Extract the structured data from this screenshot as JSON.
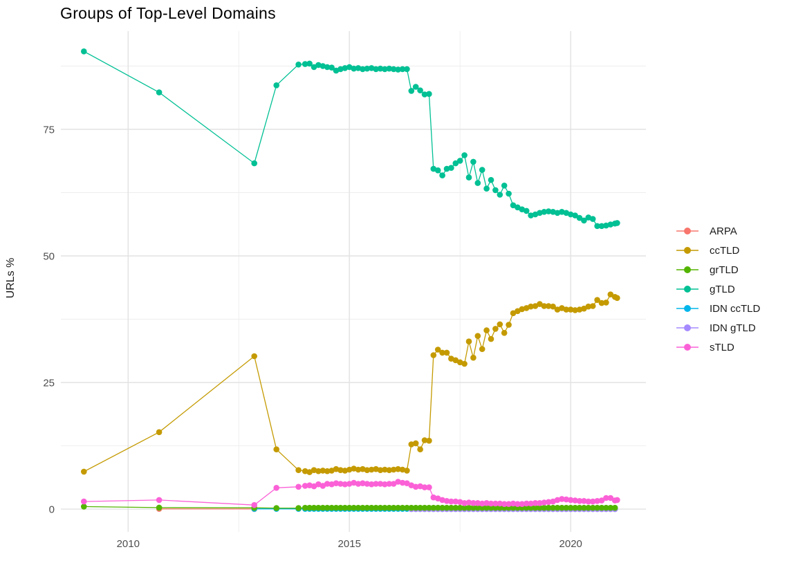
{
  "chart_data": {
    "type": "line",
    "title": "Groups of Top-Level Domains",
    "ylabel": "URLs %",
    "xlabel": "",
    "x_ticks": [
      2010,
      2015,
      2020
    ],
    "y_ticks": [
      0,
      25,
      50,
      75
    ],
    "xlim": [
      2008.48,
      2021.7
    ],
    "ylim": [
      -4.5,
      94.4
    ],
    "grid": true,
    "legend_position": "right",
    "point_radius": 4.3,
    "line_width": 1.3,
    "grid_major_color": "#e2e2e2",
    "grid_minor_color": "#ededed",
    "tick_label_color": "#4d4d4d",
    "text_color": "#1a1a1a",
    "background_color": "#ffffff",
    "draw_order": [
      "ARPA",
      "IDN ccTLD",
      "IDN gTLD",
      "grTLD",
      "ccTLD",
      "gTLD",
      "sTLD"
    ],
    "series": [
      {
        "name": "ARPA",
        "color": "#F8766D",
        "points": [
          [
            2010.7,
            0.05
          ],
          [
            2012.85,
            0.02
          ]
        ]
      },
      {
        "name": "ccTLD",
        "color": "#C49A00",
        "points": [
          [
            2009,
            7.4
          ],
          [
            2010.7,
            15.2
          ],
          [
            2012.85,
            30.2
          ],
          [
            2013.35,
            11.8
          ],
          [
            2013.85,
            7.7
          ],
          [
            2014,
            7.5
          ],
          [
            2014.1,
            7.3
          ],
          [
            2014.2,
            7.7
          ],
          [
            2014.3,
            7.5
          ],
          [
            2014.4,
            7.6
          ],
          [
            2014.5,
            7.5
          ],
          [
            2014.6,
            7.6
          ],
          [
            2014.7,
            7.9
          ],
          [
            2014.8,
            7.7
          ],
          [
            2014.9,
            7.6
          ],
          [
            2015,
            7.8
          ],
          [
            2015.1,
            8.0
          ],
          [
            2015.2,
            7.8
          ],
          [
            2015.3,
            7.9
          ],
          [
            2015.4,
            7.7
          ],
          [
            2015.5,
            7.8
          ],
          [
            2015.6,
            7.9
          ],
          [
            2015.7,
            7.7
          ],
          [
            2015.8,
            7.8
          ],
          [
            2015.9,
            7.7
          ],
          [
            2016,
            7.8
          ],
          [
            2016.1,
            7.9
          ],
          [
            2016.2,
            7.8
          ],
          [
            2016.3,
            7.6
          ],
          [
            2016.4,
            12.8
          ],
          [
            2016.5,
            13.0
          ],
          [
            2016.6,
            11.8
          ],
          [
            2016.7,
            13.6
          ],
          [
            2016.8,
            13.5
          ],
          [
            2016.9,
            30.4
          ],
          [
            2017,
            31.5
          ],
          [
            2017.1,
            30.9
          ],
          [
            2017.2,
            30.9
          ],
          [
            2017.3,
            29.7
          ],
          [
            2017.4,
            29.4
          ],
          [
            2017.5,
            29.0
          ],
          [
            2017.6,
            28.7
          ],
          [
            2017.7,
            33.1
          ],
          [
            2017.8,
            29.9
          ],
          [
            2017.9,
            34.2
          ],
          [
            2018,
            31.6
          ],
          [
            2018.1,
            35.3
          ],
          [
            2018.2,
            33.6
          ],
          [
            2018.3,
            35.6
          ],
          [
            2018.4,
            36.5
          ],
          [
            2018.5,
            34.8
          ],
          [
            2018.6,
            36.4
          ],
          [
            2018.7,
            38.7
          ],
          [
            2018.8,
            39.1
          ],
          [
            2018.9,
            39.5
          ],
          [
            2019,
            39.7
          ],
          [
            2019.1,
            40.0
          ],
          [
            2019.2,
            40.1
          ],
          [
            2019.3,
            40.5
          ],
          [
            2019.4,
            40.1
          ],
          [
            2019.5,
            40.1
          ],
          [
            2019.6,
            40.0
          ],
          [
            2019.7,
            39.4
          ],
          [
            2019.8,
            39.7
          ],
          [
            2019.9,
            39.4
          ],
          [
            2020,
            39.4
          ],
          [
            2020.1,
            39.3
          ],
          [
            2020.2,
            39.4
          ],
          [
            2020.3,
            39.6
          ],
          [
            2020.4,
            40.0
          ],
          [
            2020.5,
            40.1
          ],
          [
            2020.6,
            41.3
          ],
          [
            2020.7,
            40.7
          ],
          [
            2020.8,
            40.8
          ],
          [
            2020.9,
            42.4
          ],
          [
            2021,
            41.9
          ],
          [
            2021.05,
            41.7
          ]
        ]
      },
      {
        "name": "grTLD",
        "color": "#53B400",
        "points": [
          [
            2009,
            0.5
          ],
          [
            2010.7,
            0.3
          ],
          [
            2012.85,
            0.25
          ],
          [
            2013.35,
            0.2
          ],
          [
            2013.85,
            0.2
          ]
        ],
        "flat_segments": [
          {
            "from": 2014.0,
            "to": 2021.05,
            "step": 0.1,
            "value": 0.25
          }
        ]
      },
      {
        "name": "gTLD",
        "color": "#00C094",
        "points": [
          [
            2009,
            90.4
          ],
          [
            2010.7,
            82.3
          ],
          [
            2012.85,
            68.3
          ],
          [
            2013.35,
            83.7
          ],
          [
            2013.85,
            87.8
          ],
          [
            2014,
            87.9
          ],
          [
            2014.1,
            88.0
          ],
          [
            2014.2,
            87.3
          ],
          [
            2014.3,
            87.7
          ],
          [
            2014.4,
            87.5
          ],
          [
            2014.5,
            87.3
          ],
          [
            2014.6,
            87.2
          ],
          [
            2014.7,
            86.6
          ],
          [
            2014.8,
            86.9
          ],
          [
            2014.9,
            87.1
          ],
          [
            2015,
            87.3
          ],
          [
            2015.1,
            87.0
          ],
          [
            2015.2,
            87.1
          ],
          [
            2015.3,
            86.9
          ],
          [
            2015.4,
            87.0
          ],
          [
            2015.5,
            87.1
          ],
          [
            2015.6,
            86.9
          ],
          [
            2015.7,
            87.0
          ],
          [
            2015.8,
            86.9
          ],
          [
            2015.9,
            87.0
          ],
          [
            2016,
            86.9
          ],
          [
            2016.1,
            86.8
          ],
          [
            2016.2,
            86.9
          ],
          [
            2016.3,
            86.9
          ],
          [
            2016.4,
            82.6
          ],
          [
            2016.5,
            83.4
          ],
          [
            2016.6,
            82.7
          ],
          [
            2016.7,
            81.9
          ],
          [
            2016.8,
            82.0
          ],
          [
            2016.9,
            67.2
          ],
          [
            2017,
            66.9
          ],
          [
            2017.1,
            65.9
          ],
          [
            2017.2,
            67.2
          ],
          [
            2017.3,
            67.4
          ],
          [
            2017.4,
            68.3
          ],
          [
            2017.5,
            68.8
          ],
          [
            2017.6,
            69.9
          ],
          [
            2017.7,
            65.5
          ],
          [
            2017.8,
            68.6
          ],
          [
            2017.9,
            64.4
          ],
          [
            2018,
            67.0
          ],
          [
            2018.1,
            63.3
          ],
          [
            2018.2,
            65.0
          ],
          [
            2018.3,
            63.0
          ],
          [
            2018.4,
            62.1
          ],
          [
            2018.5,
            63.9
          ],
          [
            2018.6,
            62.3
          ],
          [
            2018.7,
            60.0
          ],
          [
            2018.8,
            59.6
          ],
          [
            2018.9,
            59.2
          ],
          [
            2019,
            58.9
          ],
          [
            2019.1,
            58.0
          ],
          [
            2019.2,
            58.2
          ],
          [
            2019.3,
            58.5
          ],
          [
            2019.4,
            58.7
          ],
          [
            2019.5,
            58.8
          ],
          [
            2019.6,
            58.7
          ],
          [
            2019.7,
            58.5
          ],
          [
            2019.8,
            58.7
          ],
          [
            2019.9,
            58.5
          ],
          [
            2020,
            58.2
          ],
          [
            2020.1,
            58.0
          ],
          [
            2020.2,
            57.5
          ],
          [
            2020.3,
            57.0
          ],
          [
            2020.4,
            57.6
          ],
          [
            2020.5,
            57.3
          ],
          [
            2020.6,
            55.9
          ],
          [
            2020.7,
            55.9
          ],
          [
            2020.8,
            56.0
          ],
          [
            2020.9,
            56.2
          ],
          [
            2021,
            56.4
          ],
          [
            2021.05,
            56.5
          ]
        ]
      },
      {
        "name": "IDN ccTLD",
        "color": "#00B6EB",
        "points": [
          [
            2012.85,
            0.05
          ],
          [
            2013.35,
            0.05
          ],
          [
            2013.85,
            0.05
          ]
        ],
        "flat_segments": [
          {
            "from": 2014.0,
            "to": 2021.05,
            "step": 0.1,
            "value": 0.05
          }
        ]
      },
      {
        "name": "IDN gTLD",
        "color": "#A58AFF",
        "points": [],
        "flat_segments": [
          {
            "from": 2016.4,
            "to": 2021.05,
            "step": 0.1,
            "value": 0.0
          }
        ]
      },
      {
        "name": "sTLD",
        "color": "#FB61D7",
        "points": [
          [
            2009,
            1.5
          ],
          [
            2010.7,
            1.8
          ],
          [
            2012.85,
            0.8
          ],
          [
            2013.35,
            4.2
          ],
          [
            2013.85,
            4.4
          ],
          [
            2014,
            4.6
          ],
          [
            2014.1,
            4.7
          ],
          [
            2014.2,
            4.5
          ],
          [
            2014.3,
            4.9
          ],
          [
            2014.4,
            4.6
          ],
          [
            2014.5,
            5.0
          ],
          [
            2014.6,
            4.9
          ],
          [
            2014.7,
            5.1
          ],
          [
            2014.8,
            5.0
          ],
          [
            2014.9,
            4.9
          ],
          [
            2015,
            5.0
          ],
          [
            2015.1,
            5.2
          ],
          [
            2015.2,
            5.0
          ],
          [
            2015.3,
            5.1
          ],
          [
            2015.4,
            5.0
          ],
          [
            2015.5,
            4.9
          ],
          [
            2015.6,
            5.0
          ],
          [
            2015.7,
            5.0
          ],
          [
            2015.8,
            4.9
          ],
          [
            2015.9,
            5.0
          ],
          [
            2016,
            5.0
          ],
          [
            2016.1,
            5.4
          ],
          [
            2016.2,
            5.2
          ],
          [
            2016.3,
            5.1
          ],
          [
            2016.4,
            4.7
          ],
          [
            2016.5,
            4.4
          ],
          [
            2016.6,
            4.5
          ],
          [
            2016.7,
            4.3
          ],
          [
            2016.8,
            4.3
          ],
          [
            2016.9,
            2.3
          ],
          [
            2017,
            2.1
          ],
          [
            2017.1,
            1.8
          ],
          [
            2017.2,
            1.6
          ],
          [
            2017.3,
            1.5
          ],
          [
            2017.4,
            1.5
          ],
          [
            2017.5,
            1.4
          ],
          [
            2017.6,
            1.2
          ],
          [
            2017.7,
            1.3
          ],
          [
            2017.8,
            1.2
          ],
          [
            2017.9,
            1.2
          ],
          [
            2018,
            1.1
          ],
          [
            2018.1,
            1.2
          ],
          [
            2018.2,
            1.1
          ],
          [
            2018.3,
            1.1
          ],
          [
            2018.4,
            1.1
          ],
          [
            2018.5,
            1.0
          ],
          [
            2018.6,
            1.0
          ],
          [
            2018.7,
            1.1
          ],
          [
            2018.8,
            1.0
          ],
          [
            2018.9,
            1.0
          ],
          [
            2019,
            1.1
          ],
          [
            2019.1,
            1.1
          ],
          [
            2019.2,
            1.2
          ],
          [
            2019.3,
            1.2
          ],
          [
            2019.4,
            1.3
          ],
          [
            2019.5,
            1.4
          ],
          [
            2019.6,
            1.5
          ],
          [
            2019.7,
            1.8
          ],
          [
            2019.8,
            2.0
          ],
          [
            2019.9,
            1.9
          ],
          [
            2020,
            1.8
          ],
          [
            2020.1,
            1.7
          ],
          [
            2020.2,
            1.6
          ],
          [
            2020.3,
            1.6
          ],
          [
            2020.4,
            1.5
          ],
          [
            2020.5,
            1.5
          ],
          [
            2020.6,
            1.6
          ],
          [
            2020.7,
            1.7
          ],
          [
            2020.8,
            2.2
          ],
          [
            2020.9,
            2.2
          ],
          [
            2021,
            1.7
          ],
          [
            2021.05,
            1.8
          ]
        ]
      }
    ]
  }
}
